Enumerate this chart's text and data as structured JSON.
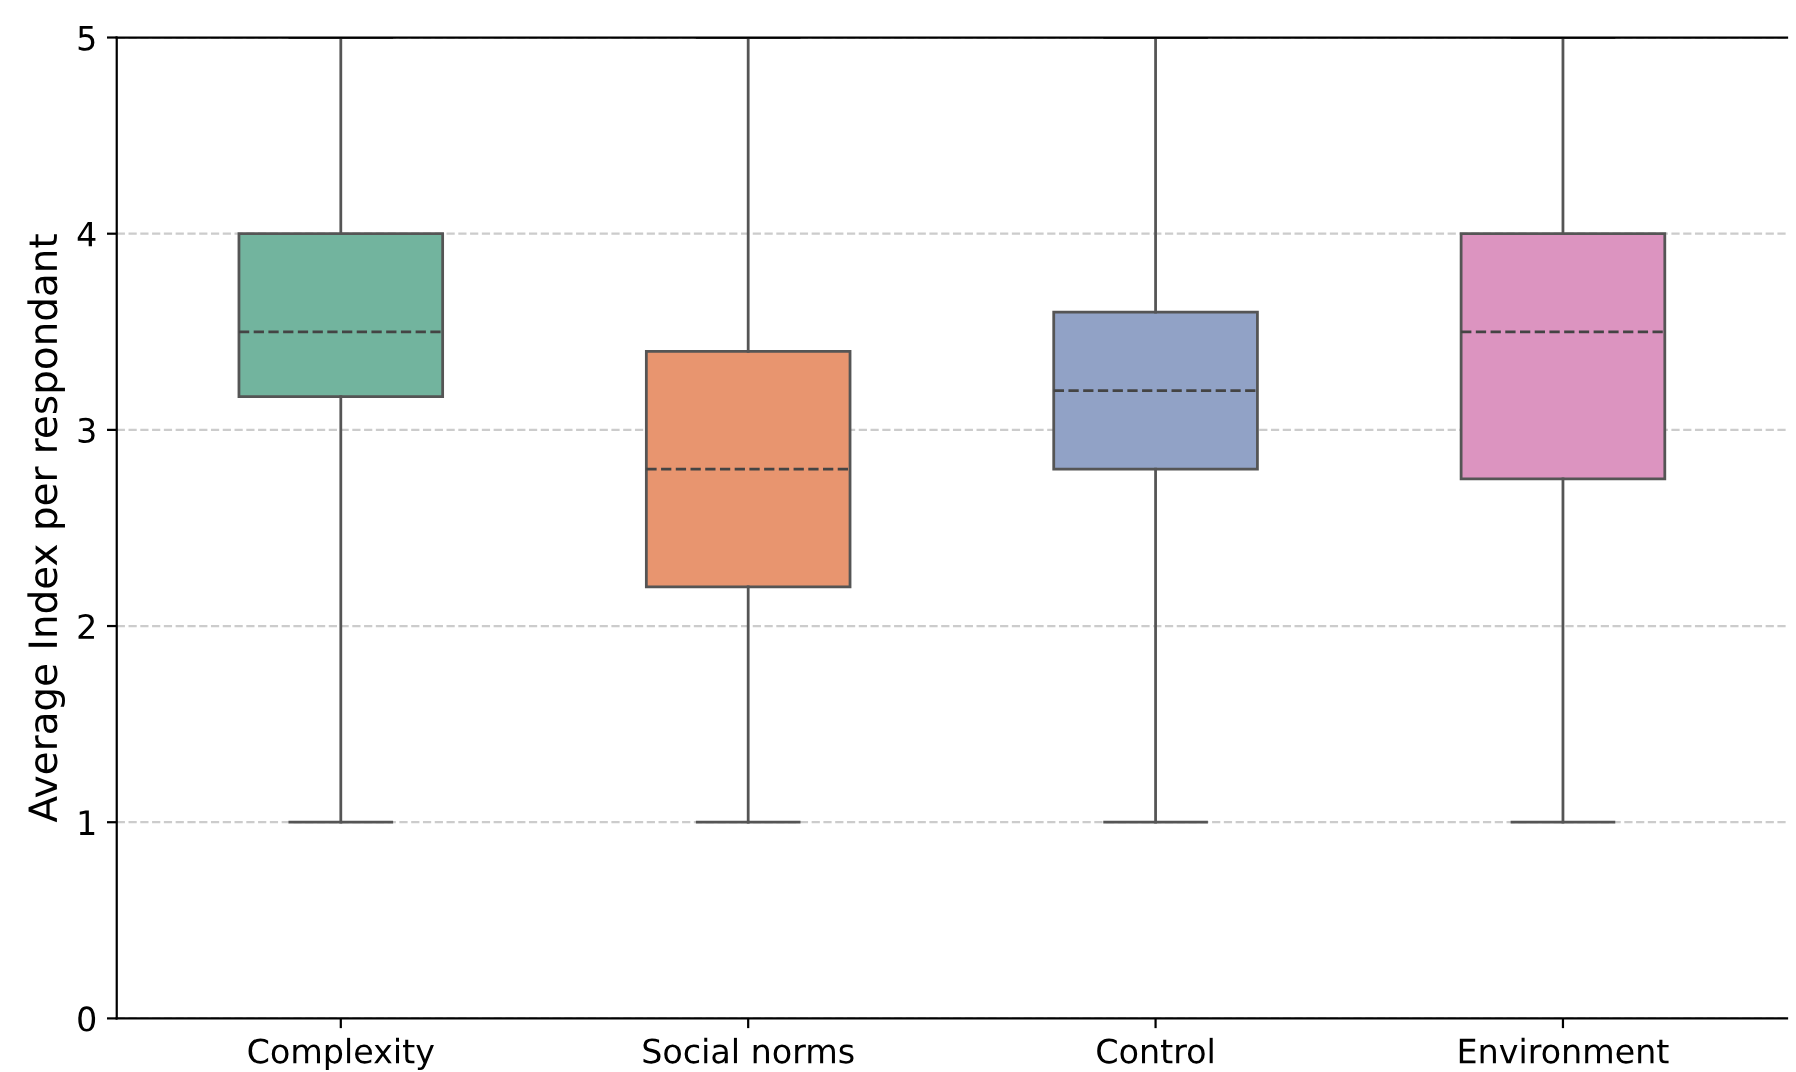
{
  "chart_data": {
    "type": "box",
    "ylabel": "Average Index per respondant",
    "categories": [
      "Complexity",
      "Social norms",
      "Control",
      "Environment"
    ],
    "boxes": [
      {
        "low": 1,
        "q1": 3.17,
        "median": 3.5,
        "q3": 4.0,
        "high": 5
      },
      {
        "low": 1,
        "q1": 2.2,
        "median": 2.8,
        "q3": 3.4,
        "high": 5
      },
      {
        "low": 1,
        "q1": 2.8,
        "median": 3.2,
        "q3": 3.6,
        "high": 5
      },
      {
        "low": 1,
        "q1": 2.75,
        "median": 3.5,
        "q3": 4.0,
        "high": 5
      }
    ],
    "colors": [
      "#72b49e",
      "#e8956f",
      "#91a2c6",
      "#dc94c0"
    ],
    "ylim": [
      0,
      5
    ],
    "yticks": [
      0,
      1,
      2,
      3,
      4,
      5
    ],
    "grid": "y"
  }
}
